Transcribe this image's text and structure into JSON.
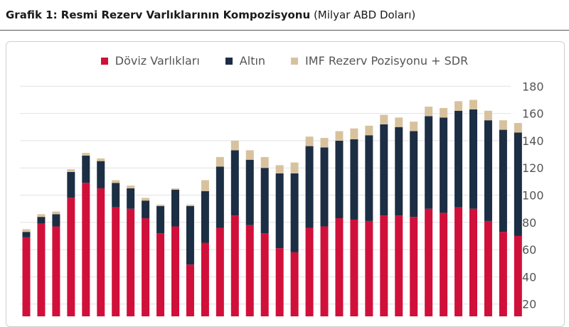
{
  "header": {
    "title_bold": "Grafik 1: Resmi Rezerv Varlıklarının Kompozisyonu",
    "title_unit": "(Milyar ABD Doları)"
  },
  "legend": {
    "items": [
      {
        "label": "Döviz Varlıkları",
        "color": "#d0103a"
      },
      {
        "label": "Altın",
        "color": "#1c2e44"
      },
      {
        "label": "IMF Rezerv Pozisyonu + SDR",
        "color": "#d8c29e"
      }
    ]
  },
  "chart_data": {
    "type": "bar",
    "stacked": true,
    "ylim": [
      0,
      180
    ],
    "yticks": [
      20,
      40,
      60,
      80,
      100,
      120,
      140,
      160,
      180
    ],
    "y_axis_side": "right",
    "grid": true,
    "legend_position": "top",
    "series": [
      {
        "name": "Döviz Varlıkları",
        "color": "#d0103a",
        "values": [
          69,
          79,
          77,
          98,
          109,
          105,
          91,
          90,
          83,
          72,
          77,
          49,
          65,
          76,
          85,
          78,
          72,
          61,
          58,
          76,
          77,
          83,
          82,
          81,
          85,
          85,
          84,
          90,
          87,
          91,
          90,
          81,
          73,
          70
        ]
      },
      {
        "name": "Altın",
        "color": "#1c2e44",
        "values": [
          4,
          5,
          9,
          19,
          20,
          20,
          18,
          15,
          13,
          20,
          27,
          43,
          38,
          45,
          48,
          48,
          48,
          55,
          58,
          60,
          58,
          57,
          59,
          63,
          67,
          65,
          63,
          68,
          70,
          71,
          73,
          74,
          75,
          76
        ]
      },
      {
        "name": "IMF Rezerv Pozisyonu + SDR",
        "color": "#d8c29e",
        "values": [
          2,
          2,
          2,
          2,
          2,
          2,
          2,
          2,
          2,
          1,
          1,
          1,
          8,
          7,
          7,
          7,
          8,
          6,
          8,
          7,
          7,
          7,
          8,
          7,
          7,
          7,
          7,
          7,
          7,
          7,
          7,
          7,
          7,
          7
        ]
      }
    ]
  }
}
